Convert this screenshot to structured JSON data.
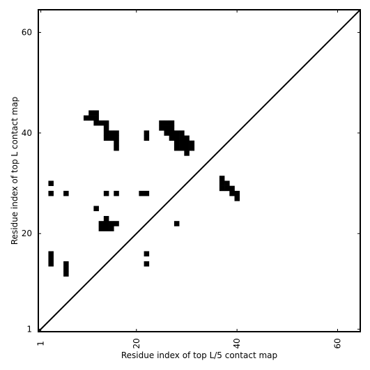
{
  "chart_data": {
    "type": "heatmap",
    "title": "",
    "xlabel": "Residue index of top L/5 contact map",
    "ylabel": "Residue index of top L contact map",
    "xlim": [
      0.5,
      64.5
    ],
    "ylim": [
      0.5,
      64.5
    ],
    "xticks": [
      1,
      20,
      40,
      60
    ],
    "yticks": [
      1,
      20,
      40,
      60
    ],
    "grid": false,
    "diagonal": true,
    "cells": [
      [
        3,
        30
      ],
      [
        3,
        28
      ],
      [
        6,
        28
      ],
      [
        3,
        16
      ],
      [
        3,
        15
      ],
      [
        3,
        14
      ],
      [
        6,
        14
      ],
      [
        6,
        13
      ],
      [
        6,
        12
      ],
      [
        10,
        43
      ],
      [
        11,
        43
      ],
      [
        11,
        44
      ],
      [
        12,
        43
      ],
      [
        12,
        44
      ],
      [
        12,
        42
      ],
      [
        13,
        42
      ],
      [
        14,
        42
      ],
      [
        14,
        41
      ],
      [
        14,
        40
      ],
      [
        14,
        39
      ],
      [
        15,
        40
      ],
      [
        15,
        39
      ],
      [
        16,
        40
      ],
      [
        16,
        39
      ],
      [
        16,
        38
      ],
      [
        16,
        37
      ],
      [
        12,
        25
      ],
      [
        14,
        28
      ],
      [
        16,
        28
      ],
      [
        14,
        23
      ],
      [
        13,
        22
      ],
      [
        14,
        22
      ],
      [
        15,
        22
      ],
      [
        16,
        22
      ],
      [
        13,
        21
      ],
      [
        14,
        21
      ],
      [
        15,
        21
      ],
      [
        21,
        28
      ],
      [
        22,
        28
      ],
      [
        22,
        40
      ],
      [
        22,
        39
      ],
      [
        22,
        16
      ],
      [
        22,
        14
      ],
      [
        25,
        42
      ],
      [
        26,
        42
      ],
      [
        27,
        42
      ],
      [
        25,
        41
      ],
      [
        26,
        41
      ],
      [
        27,
        41
      ],
      [
        26,
        40
      ],
      [
        27,
        40
      ],
      [
        28,
        40
      ],
      [
        29,
        40
      ],
      [
        27,
        39
      ],
      [
        28,
        39
      ],
      [
        29,
        39
      ],
      [
        30,
        39
      ],
      [
        28,
        38
      ],
      [
        29,
        38
      ],
      [
        30,
        38
      ],
      [
        31,
        38
      ],
      [
        28,
        37
      ],
      [
        29,
        37
      ],
      [
        30,
        37
      ],
      [
        31,
        37
      ],
      [
        30,
        36
      ],
      [
        28,
        22
      ],
      [
        37,
        31
      ],
      [
        37,
        30
      ],
      [
        38,
        30
      ],
      [
        37,
        29
      ],
      [
        38,
        29
      ],
      [
        39,
        29
      ],
      [
        39,
        28
      ],
      [
        40,
        28
      ],
      [
        40,
        27
      ]
    ]
  }
}
